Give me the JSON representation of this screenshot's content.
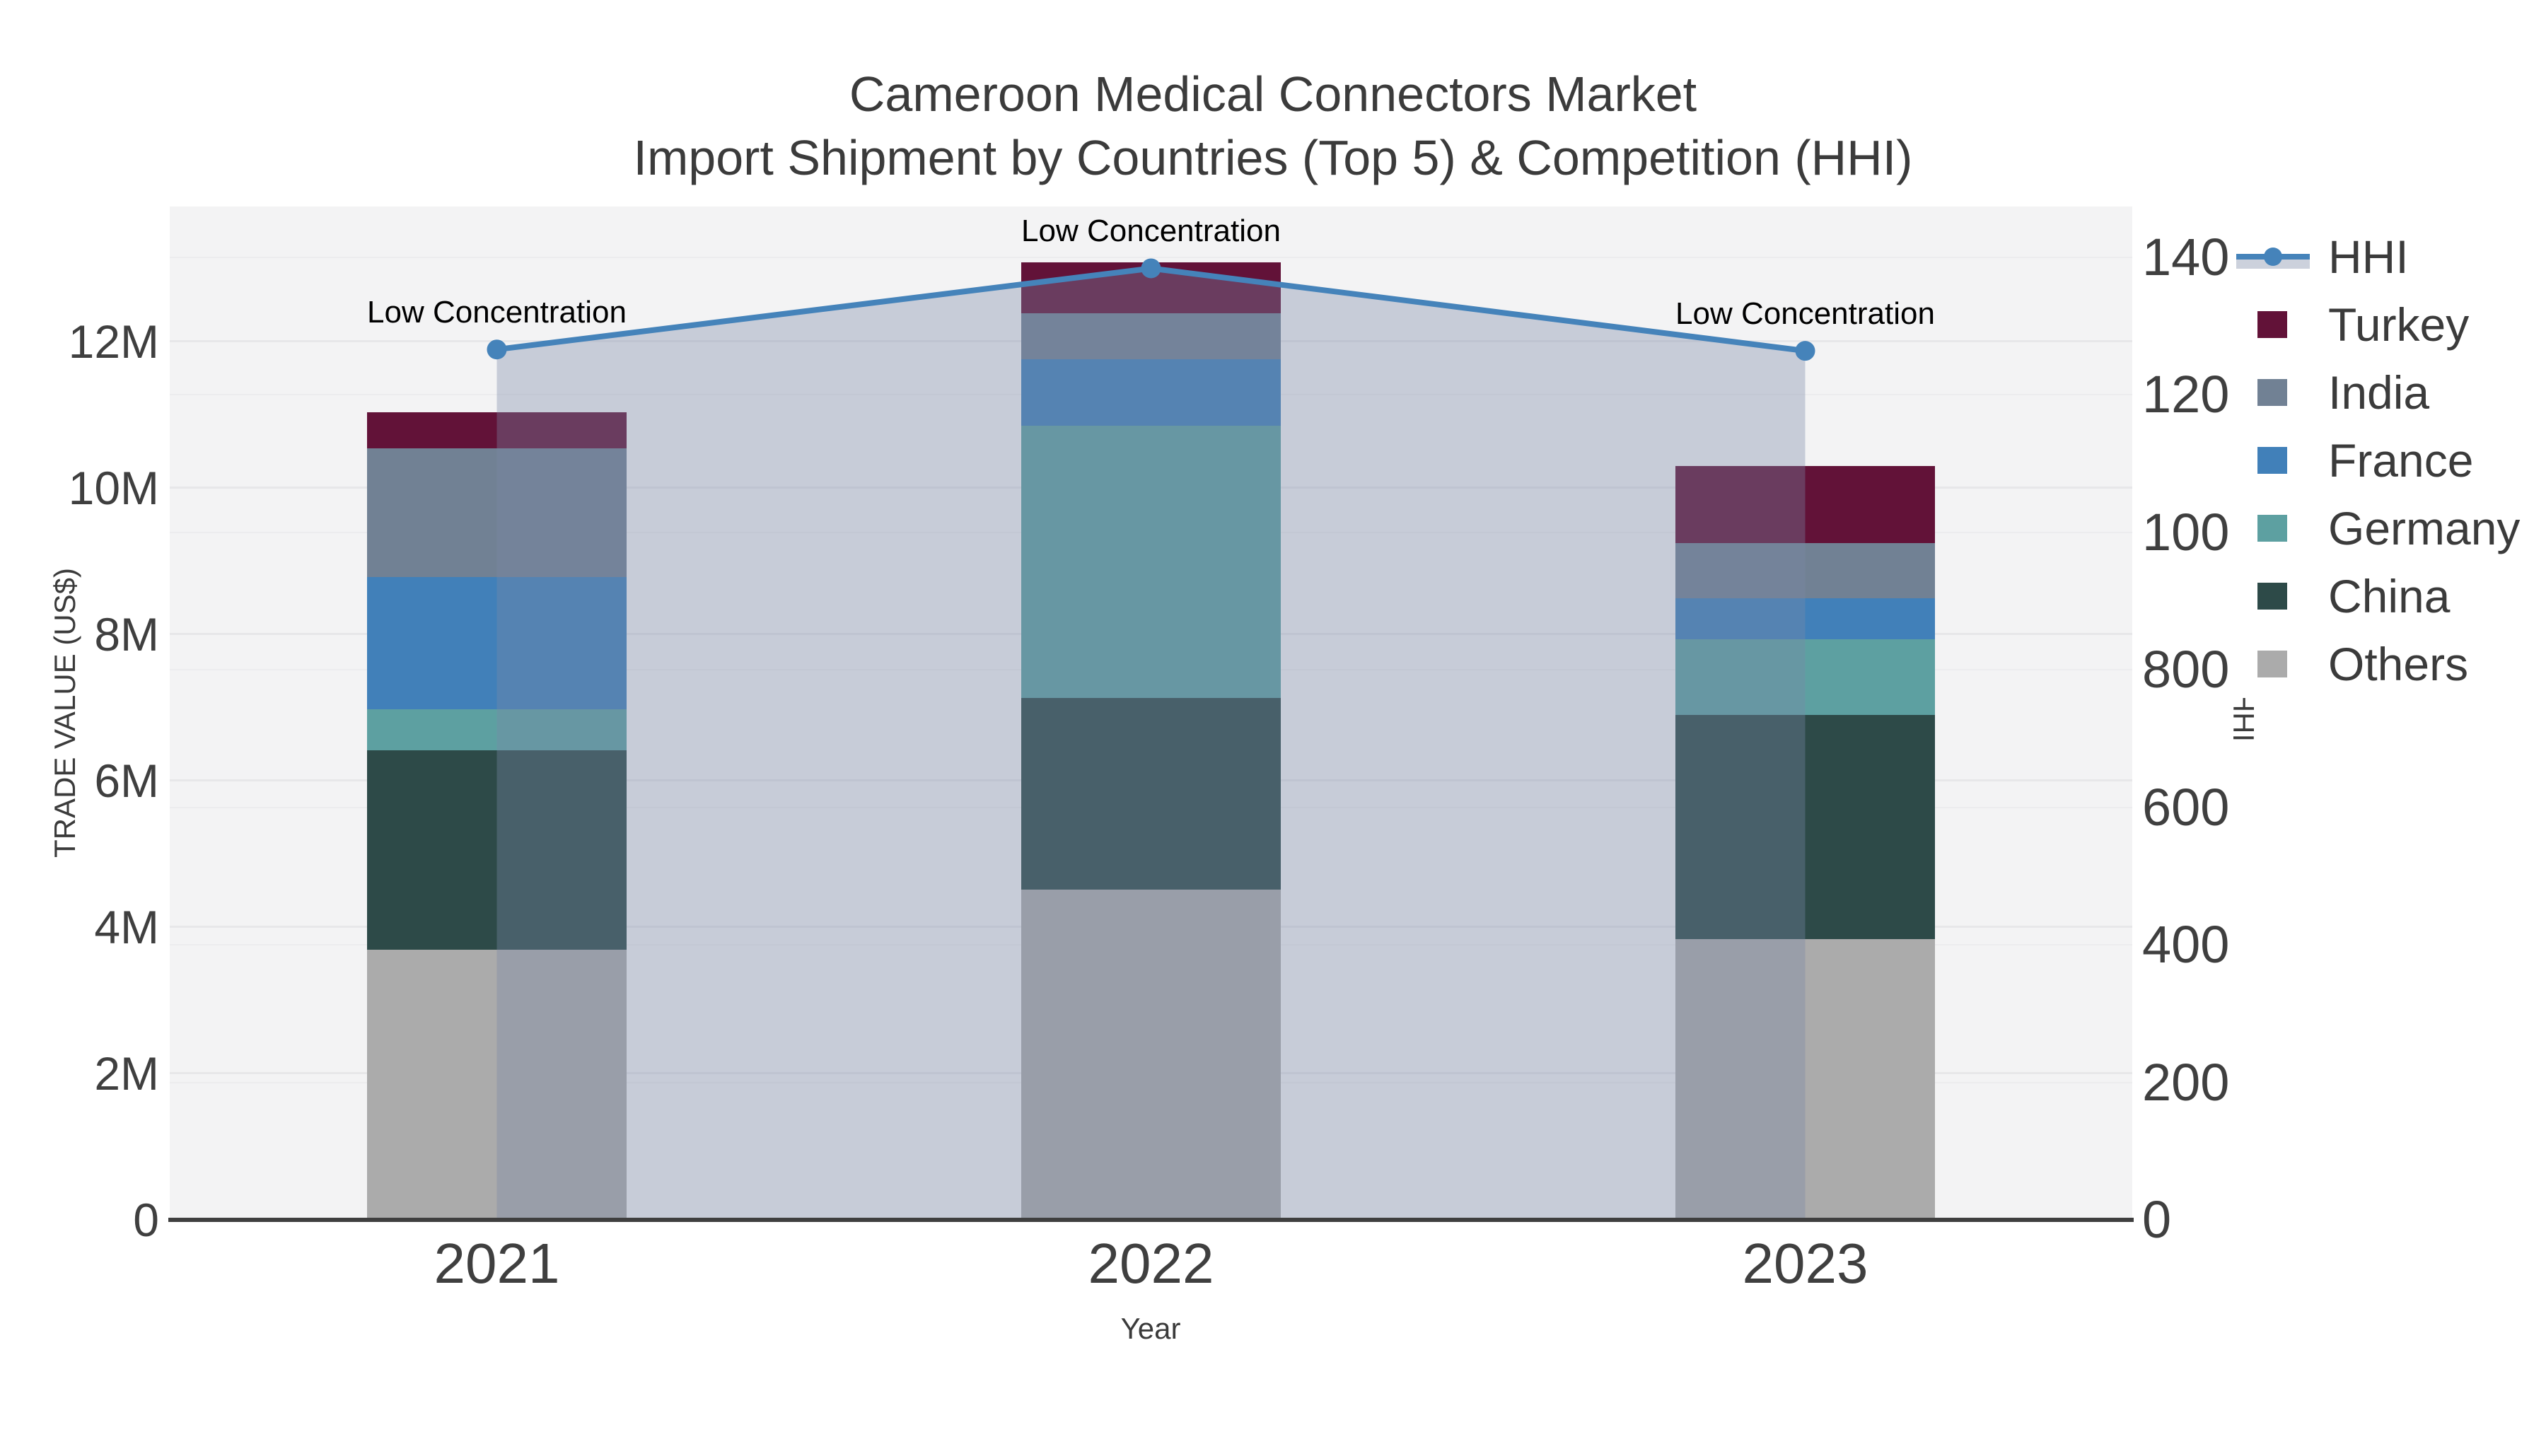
{
  "title": {
    "line1": "Cameroon Medical Connectors Market",
    "line2": "Import Shipment by Countries (Top 5) & Competition (HHI)"
  },
  "legend": {
    "items": [
      {
        "label": "HHI",
        "type": "line",
        "color": "#4583ba",
        "band_color": "#ccd1dc"
      },
      {
        "label": "Turkey",
        "type": "swatch",
        "color": "#621238"
      },
      {
        "label": "India",
        "type": "swatch",
        "color": "#718194"
      },
      {
        "label": "France",
        "type": "swatch",
        "color": "#4180b9"
      },
      {
        "label": "Germany",
        "type": "swatch",
        "color": "#5da0a1"
      },
      {
        "label": "China",
        "type": "swatch",
        "color": "#2d4a48"
      },
      {
        "label": "Others",
        "type": "swatch",
        "color": "#ababab"
      }
    ]
  },
  "chart_data": {
    "type": "stacked-bar+line",
    "title": "Cameroon Medical Connectors Market — Import Shipment by Countries (Top 5) & Competition (HHI)",
    "categories": [
      "2021",
      "2022",
      "2023"
    ],
    "x_label": "Year",
    "series": [
      {
        "name": "Others",
        "color": "#ababab",
        "values": [
          3690000,
          4510000,
          3830000
        ]
      },
      {
        "name": "China",
        "color": "#2d4a48",
        "values": [
          2720000,
          2620000,
          3070000
        ]
      },
      {
        "name": "Germany",
        "color": "#5da0a1",
        "values": [
          560000,
          3720000,
          1030000
        ]
      },
      {
        "name": "France",
        "color": "#4180b9",
        "values": [
          1810000,
          900000,
          560000
        ]
      },
      {
        "name": "India",
        "color": "#718194",
        "values": [
          1760000,
          630000,
          750000
        ]
      },
      {
        "name": "Turkey",
        "color": "#621238",
        "values": [
          490000,
          700000,
          1060000
        ]
      }
    ],
    "totals": [
      11030000,
      13080000,
      10300000
    ],
    "hhi_line": {
      "name": "HHI",
      "color": "#4583ba",
      "area_fill": "rgba(123,137,166,0.36)",
      "values": [
        1266,
        1384,
        1264
      ]
    },
    "annotations": [
      {
        "text": "Low Concentration",
        "x": "2021",
        "y": 1266
      },
      {
        "text": "Low Concentration",
        "x": "2022",
        "y": 1384
      },
      {
        "text": "Low Concentration",
        "x": "2023",
        "y": 1264
      }
    ],
    "y_left": {
      "label": "TRADE VALUE (US$)",
      "tick_values": [
        0,
        2000000,
        4000000,
        6000000,
        8000000,
        10000000,
        12000000
      ],
      "tick_labels": [
        "0",
        "2M",
        "4M",
        "6M",
        "8M",
        "10M",
        "12M"
      ],
      "max": 13840000
    },
    "y_right": {
      "label": "HHI",
      "tick_values": [
        0,
        200,
        400,
        600,
        800,
        1000,
        1200,
        1400
      ],
      "tick_labels": [
        "0",
        "200",
        "400",
        "600",
        "800",
        "1000",
        "1200",
        "1400"
      ],
      "max": 1474
    },
    "grid": true,
    "legend_position": "right"
  }
}
